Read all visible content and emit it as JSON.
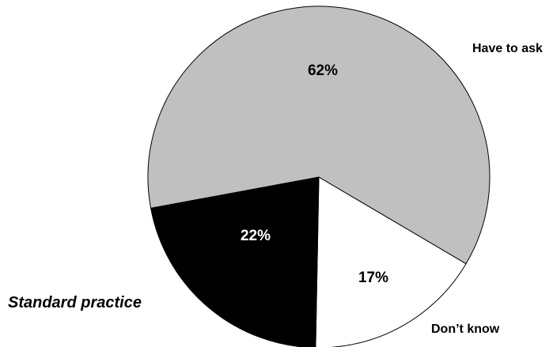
{
  "chart_data": {
    "type": "pie",
    "slices": [
      {
        "label": "Have to ask",
        "value": 62,
        "value_label": "62%",
        "color": "#c0c0c0",
        "text_color": "#000000"
      },
      {
        "label": "Don’t know",
        "value": 17,
        "value_label": "17%",
        "color": "#ffffff",
        "text_color": "#000000"
      },
      {
        "label": "Standard practice",
        "value": 22,
        "value_label": "22%",
        "color": "#000000",
        "text_color": "#ffffff"
      }
    ],
    "legend": "none",
    "stroke_color": "#000000"
  }
}
